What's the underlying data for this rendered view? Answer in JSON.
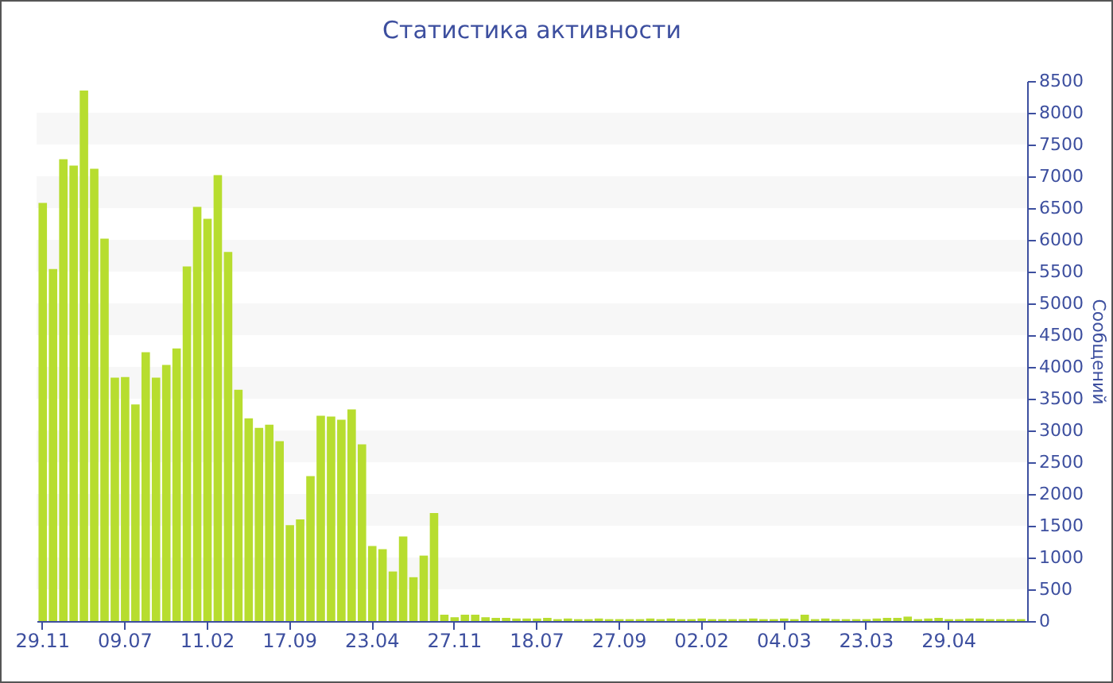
{
  "chart_data": {
    "type": "bar",
    "title": "Статистика активности",
    "ylabel": "Сообщений",
    "categories": [
      "29.11",
      null,
      null,
      null,
      null,
      null,
      null,
      null,
      "09.07",
      null,
      null,
      null,
      null,
      null,
      null,
      null,
      "11.02",
      null,
      null,
      null,
      null,
      null,
      null,
      null,
      "17.09",
      null,
      null,
      null,
      null,
      null,
      null,
      null,
      "23.04",
      null,
      null,
      null,
      null,
      null,
      null,
      null,
      "27.11",
      null,
      null,
      null,
      null,
      null,
      null,
      null,
      "18.07",
      null,
      null,
      null,
      null,
      null,
      null,
      null,
      "27.09",
      null,
      null,
      null,
      null,
      null,
      null,
      null,
      "02.02",
      null,
      null,
      null,
      null,
      null,
      null,
      null,
      "04.03",
      null,
      null,
      null,
      null,
      null,
      null,
      null,
      "23.03",
      null,
      null,
      null,
      null,
      null,
      null,
      null,
      "29.04",
      null,
      null,
      null,
      null,
      null,
      null,
      null
    ],
    "values": [
      6580,
      5540,
      7270,
      7170,
      8350,
      7120,
      6020,
      3830,
      3840,
      3410,
      4230,
      3830,
      4030,
      4290,
      5580,
      6520,
      6330,
      7020,
      5810,
      3640,
      3190,
      3040,
      3090,
      2830,
      1510,
      1600,
      2280,
      3230,
      3220,
      3170,
      3330,
      2780,
      1180,
      1130,
      780,
      1330,
      690,
      1030,
      1700,
      100,
      60,
      100,
      100,
      60,
      50,
      50,
      40,
      40,
      40,
      50,
      30,
      40,
      30,
      30,
      40,
      30,
      30,
      30,
      30,
      40,
      30,
      40,
      30,
      30,
      40,
      30,
      30,
      30,
      30,
      40,
      30,
      30,
      40,
      30,
      100,
      30,
      40,
      30,
      30,
      30,
      30,
      40,
      50,
      50,
      70,
      30,
      40,
      50,
      30,
      30,
      40,
      40,
      30,
      30,
      30,
      30
    ],
    "color": "#b7dd2f",
    "ylim": [
      0,
      8500
    ],
    "yticks": [
      0,
      500,
      1000,
      1500,
      2000,
      2500,
      3000,
      3500,
      4000,
      4500,
      5000,
      5500,
      6000,
      6500,
      7000,
      7500,
      8000,
      8500
    ],
    "bands": [
      {
        "axis": "y",
        "from": 500,
        "to": 1000,
        "color": "#f7f7f7"
      },
      {
        "axis": "y",
        "from": 1500,
        "to": 2000,
        "color": "#f7f7f7"
      },
      {
        "axis": "y",
        "from": 2500,
        "to": 3000,
        "color": "#f7f7f7"
      },
      {
        "axis": "y",
        "from": 3500,
        "to": 4000,
        "color": "#f7f7f7"
      },
      {
        "axis": "y",
        "from": 4500,
        "to": 5000,
        "color": "#f7f7f7"
      },
      {
        "axis": "y",
        "from": 5500,
        "to": 6000,
        "color": "#f7f7f7"
      },
      {
        "axis": "y",
        "from": 6500,
        "to": 7000,
        "color": "#f7f7f7"
      },
      {
        "axis": "y",
        "from": 7500,
        "to": 8000,
        "color": "#f7f7f7"
      }
    ]
  }
}
